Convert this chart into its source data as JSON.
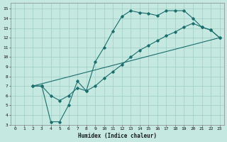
{
  "title": "",
  "xlabel": "Humidex (Indice chaleur)",
  "ylabel": "",
  "background_color": "#c5e8e0",
  "grid_color": "#9ecec5",
  "line_color": "#1a6e6e",
  "xlim": [
    -0.5,
    23.5
  ],
  "ylim": [
    3,
    15.6
  ],
  "xticks": [
    0,
    1,
    2,
    3,
    4,
    5,
    6,
    7,
    8,
    9,
    10,
    11,
    12,
    13,
    14,
    15,
    16,
    17,
    18,
    19,
    20,
    21,
    22,
    23
  ],
  "yticks": [
    3,
    4,
    5,
    6,
    7,
    8,
    9,
    10,
    11,
    12,
    13,
    14,
    15
  ],
  "line1_x": [
    2,
    3,
    4,
    5,
    6,
    7,
    8,
    9,
    10,
    11,
    12,
    13,
    14,
    15,
    16,
    17,
    18,
    19,
    20,
    21,
    22,
    23
  ],
  "line1_y": [
    7,
    7,
    3.3,
    3.3,
    5.0,
    7.5,
    6.5,
    9.5,
    11.0,
    12.7,
    14.2,
    14.8,
    14.6,
    14.5,
    14.3,
    14.8,
    14.8,
    14.8,
    14.0,
    13.1,
    12.8,
    12.0
  ],
  "line2_x": [
    2,
    3,
    4,
    5,
    6,
    7,
    8,
    9,
    10,
    11,
    12,
    13,
    14,
    15,
    16,
    17,
    18,
    19,
    20,
    21,
    22,
    23
  ],
  "line2_y": [
    7,
    7,
    6.0,
    5.5,
    6.0,
    6.8,
    6.5,
    7.0,
    7.8,
    8.5,
    9.2,
    10.0,
    10.7,
    11.2,
    11.7,
    12.2,
    12.6,
    13.1,
    13.5,
    13.1,
    12.8,
    12.0
  ],
  "line3_x": [
    2,
    23
  ],
  "line3_y": [
    7,
    12
  ]
}
